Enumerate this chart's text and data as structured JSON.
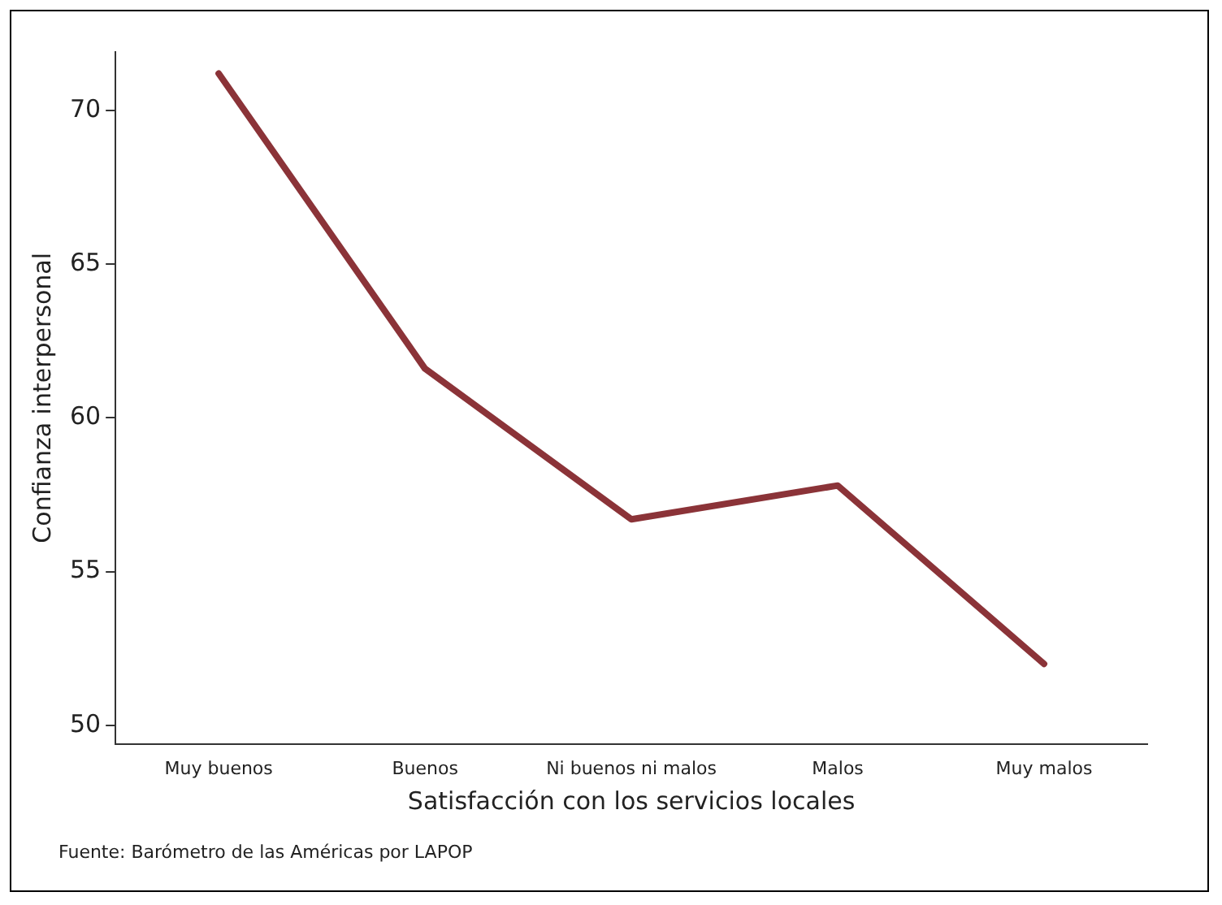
{
  "chart_data": {
    "type": "line",
    "xlabel": "Satisfacción con los servicios locales",
    "ylabel": "Confianza interpersonal",
    "categories": [
      "Muy buenos",
      "Buenos",
      "Ni buenos ni malos",
      "Malos",
      "Muy malos"
    ],
    "series": [
      {
        "color": "#8b3338",
        "values": [
          71.2,
          61.6,
          56.7,
          57.8,
          52.0
        ]
      }
    ],
    "ylim": [
      49.4,
      71.9
    ],
    "yticks": [
      50,
      55,
      60,
      65,
      70
    ],
    "grid": false,
    "legend": false,
    "marker": "none",
    "line_style": "solid",
    "annotations": [
      "Fuente: Barómetro de las Américas por LAPOP"
    ]
  }
}
